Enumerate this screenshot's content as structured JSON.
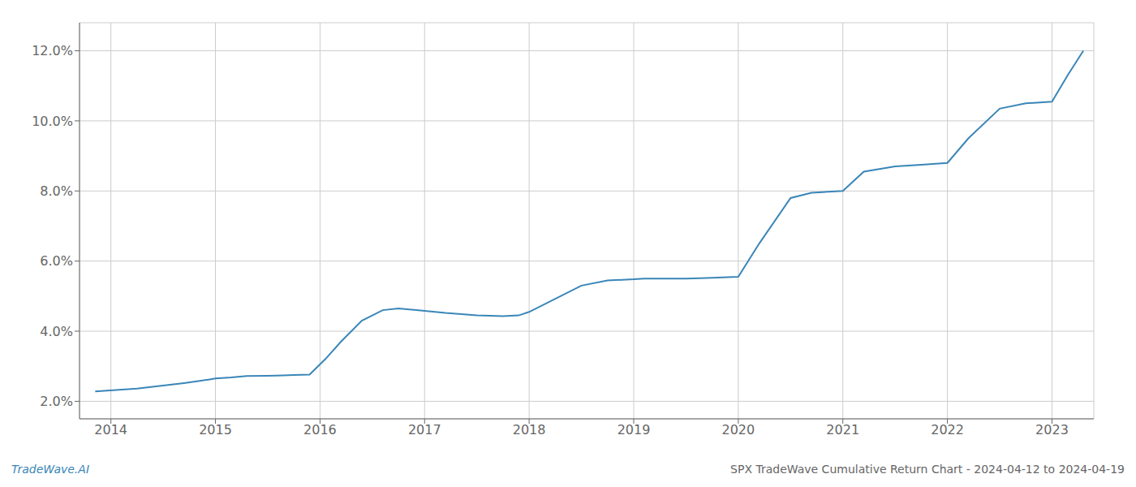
{
  "chart_data": {
    "type": "line",
    "title": "SPX TradeWave Cumulative Return Chart - 2024-04-12 to 2024-04-19",
    "annotations": [
      "TradeWave.AI"
    ],
    "x": [
      2013.85,
      2014.05,
      2014.25,
      2014.5,
      2014.7,
      2014.85,
      2015.0,
      2015.15,
      2015.3,
      2015.5,
      2015.65,
      2015.75,
      2015.9,
      2016.05,
      2016.2,
      2016.4,
      2016.6,
      2016.75,
      2017.0,
      2017.2,
      2017.5,
      2017.75,
      2017.9,
      2018.0,
      2018.2,
      2018.5,
      2018.75,
      2019.0,
      2019.1,
      2019.3,
      2019.5,
      2019.7,
      2020.0,
      2020.2,
      2020.5,
      2020.7,
      2021.0,
      2021.2,
      2021.5,
      2021.75,
      2022.0,
      2022.2,
      2022.5,
      2022.75,
      2023.0,
      2023.15,
      2023.3
    ],
    "values": [
      2.28,
      2.32,
      2.36,
      2.45,
      2.52,
      2.58,
      2.65,
      2.68,
      2.72,
      2.73,
      2.74,
      2.75,
      2.76,
      3.2,
      3.7,
      4.3,
      4.6,
      4.65,
      4.58,
      4.52,
      4.45,
      4.43,
      4.45,
      4.55,
      4.85,
      5.3,
      5.45,
      5.48,
      5.5,
      5.5,
      5.5,
      5.52,
      5.55,
      6.5,
      7.8,
      7.95,
      8.0,
      8.55,
      8.7,
      8.75,
      8.8,
      9.5,
      10.35,
      10.5,
      10.55,
      11.3,
      12.0
    ],
    "color": "#3a86b8",
    "xlim": [
      2013.7,
      2023.4
    ],
    "xticks": [
      2014,
      2015,
      2016,
      2017,
      2018,
      2019,
      2020,
      2021,
      2022,
      2023
    ],
    "ylim": [
      1.5,
      12.8
    ],
    "yticks": [
      {
        "value": 2.0,
        "label": "2.0%"
      },
      {
        "value": 4.0,
        "label": "4.0%"
      },
      {
        "value": 6.0,
        "label": "6.0%"
      },
      {
        "value": 8.0,
        "label": "8.0%"
      },
      {
        "value": 10.0,
        "label": "10.0%"
      },
      {
        "value": 12.0,
        "label": "12.0%"
      }
    ],
    "grid": true
  }
}
